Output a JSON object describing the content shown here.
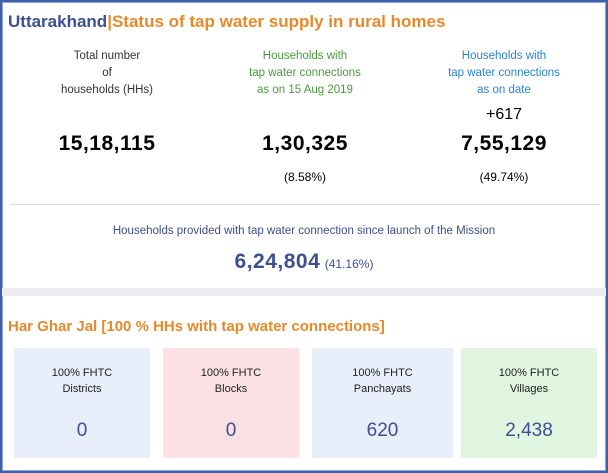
{
  "header": {
    "state": "Uttarakhand",
    "separator": "|",
    "title": "Status of tap water supply in rural homes"
  },
  "stats": {
    "total": {
      "label_line1": "Total number",
      "label_line2": "of",
      "label_line3": "households (HHs)",
      "value": "15,18,115"
    },
    "baseline": {
      "label_line1": "Households with",
      "label_line2": "tap water connections",
      "label_line3": "as on 15 Aug 2019",
      "value": "1,30,325",
      "percent": "(8.58%)"
    },
    "current": {
      "label_line1": "Households with",
      "label_line2": "tap water connections",
      "label_line3": "as on date",
      "increment": "+617",
      "value": "7,55,129",
      "percent": "(49.74%)"
    }
  },
  "mission": {
    "label": "Households provided with tap water connection since launch of the Mission",
    "value": "6,24,804",
    "percent": "(41.16%)"
  },
  "har_ghar_jal": {
    "title": "Har Ghar Jal [100 % HHs with tap water connections]",
    "cards": [
      {
        "label_line1": "100% FHTC",
        "label_line2": "Districts",
        "value": "0",
        "color": "#e8eefa"
      },
      {
        "label_line1": "100% FHTC",
        "label_line2": "Blocks",
        "value": "0",
        "color": "#fbe1e3"
      },
      {
        "label_line1": "100% FHTC",
        "label_line2": "Panchayats",
        "value": "620",
        "color": "#e8eefa"
      },
      {
        "label_line1": "100% FHTC",
        "label_line2": "Villages",
        "value": "2,438",
        "color": "#e1f6e0"
      }
    ]
  },
  "colors": {
    "brand_blue": "#3d4f8f",
    "accent_orange": "#e58a2b",
    "green": "#3a9a3a",
    "light_blue": "#2a84d4",
    "brown": "#5a3d2a"
  }
}
